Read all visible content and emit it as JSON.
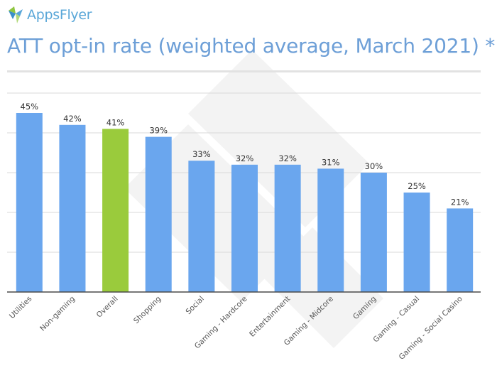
{
  "brand": {
    "name": "AppsFlyer",
    "colors": {
      "logo_green": "#8fc641",
      "logo_blue": "#5aa7d8"
    }
  },
  "title": "ATT opt-in rate (weighted average, March 2021) *",
  "colors": {
    "bar": "#6aa6ee",
    "highlight": "#9acb3c",
    "grid": "#d9d9d9",
    "axis": "#4a4a4a",
    "text": "#333333"
  },
  "chart_data": {
    "type": "bar",
    "categories": [
      "Utilities",
      "Non-gaming",
      "Overall",
      "Shopping",
      "Social",
      "Gaming - Hardcore",
      "Entertainment",
      "Gaming - Midcore",
      "Gaming",
      "Gaming - Casual",
      "Gaming - Social Casino"
    ],
    "values": [
      45,
      42,
      41,
      39,
      33,
      32,
      32,
      31,
      30,
      25,
      21
    ],
    "data_labels": [
      "45%",
      "42%",
      "41%",
      "39%",
      "33%",
      "32%",
      "32%",
      "31%",
      "30%",
      "25%",
      "21%"
    ],
    "highlight_category": "Overall",
    "unit": "%",
    "ylim": [
      0,
      50
    ],
    "gridlines": [
      0,
      10,
      20,
      30,
      40,
      50
    ],
    "grid": true,
    "title": "ATT opt-in rate (weighted average, March 2021) *",
    "xlabel": "",
    "ylabel": ""
  }
}
